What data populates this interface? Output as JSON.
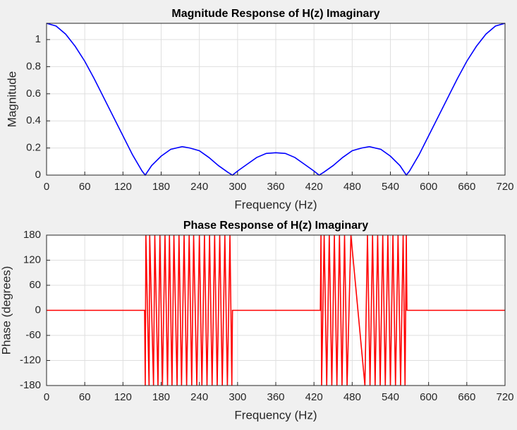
{
  "chart_data": [
    {
      "type": "line",
      "title": "Magnitude Response of H(z) Imaginary",
      "xlabel": "Frequency (Hz)",
      "ylabel": "Magnitude",
      "x": [
        0,
        15,
        30,
        45,
        60,
        75,
        90,
        105,
        120,
        135,
        150,
        155,
        165,
        180,
        195,
        213,
        225,
        240,
        255,
        270,
        285,
        292,
        300,
        315,
        330,
        345,
        360,
        375,
        390,
        405,
        420,
        428,
        435,
        450,
        465,
        480,
        495,
        507,
        525,
        540,
        555,
        565,
        570,
        585,
        600,
        615,
        630,
        645,
        660,
        675,
        690,
        705,
        720
      ],
      "series": [
        {
          "name": "Magnitude",
          "color": "#0000ff",
          "values": [
            1.12,
            1.1,
            1.04,
            0.95,
            0.84,
            0.71,
            0.57,
            0.43,
            0.29,
            0.15,
            0.03,
            0,
            0.07,
            0.14,
            0.19,
            0.21,
            0.2,
            0.18,
            0.13,
            0.07,
            0.02,
            0,
            0.03,
            0.08,
            0.13,
            0.16,
            0.165,
            0.16,
            0.13,
            0.08,
            0.03,
            0,
            0.02,
            0.07,
            0.13,
            0.18,
            0.2,
            0.21,
            0.19,
            0.14,
            0.07,
            0,
            0.03,
            0.15,
            0.29,
            0.43,
            0.57,
            0.71,
            0.84,
            0.95,
            1.04,
            1.1,
            1.12
          ]
        }
      ],
      "xlim": [
        0,
        720
      ],
      "xticks": [
        0,
        60,
        120,
        180,
        240,
        300,
        360,
        420,
        480,
        540,
        600,
        660,
        720
      ],
      "ylim": [
        0,
        1.12
      ],
      "yticks": [
        0,
        0.2,
        0.4,
        0.6,
        0.8,
        1
      ],
      "grid": true
    },
    {
      "type": "line",
      "title": "Phase Response of H(z) Imaginary",
      "xlabel": "Frequency (Hz)",
      "ylabel": "Phase (degrees)",
      "x": [
        0,
        154,
        155,
        156,
        161,
        162,
        168,
        170,
        175,
        178,
        182,
        186,
        190,
        193,
        197,
        200,
        205,
        208,
        212,
        216,
        220,
        224,
        228,
        231,
        236,
        240,
        244,
        248,
        252,
        256,
        260,
        264,
        268,
        272,
        276,
        280,
        284,
        288,
        291,
        292,
        430,
        431,
        432,
        436,
        440,
        444,
        448,
        452,
        456,
        460,
        464,
        468,
        472,
        478,
        500,
        504,
        508,
        512,
        516,
        520,
        524,
        528,
        532,
        536,
        540,
        544,
        548,
        552,
        556,
        560,
        563,
        565,
        566,
        720
      ],
      "series": [
        {
          "name": "Phase",
          "color": "#ff0000",
          "values": [
            0,
            0,
            -180,
            180,
            -180,
            180,
            -180,
            180,
            -180,
            180,
            -180,
            180,
            -180,
            180,
            -180,
            180,
            -180,
            180,
            -180,
            180,
            -180,
            180,
            -180,
            180,
            -180,
            180,
            -180,
            180,
            -180,
            180,
            -180,
            180,
            -180,
            180,
            -180,
            180,
            -180,
            180,
            -180,
            0,
            0,
            180,
            -180,
            180,
            -180,
            180,
            -180,
            180,
            -180,
            180,
            -180,
            180,
            -180,
            180,
            -180,
            180,
            -180,
            180,
            -180,
            180,
            -180,
            180,
            -180,
            180,
            -180,
            180,
            -180,
            180,
            -180,
            180,
            -180,
            180,
            0,
            0
          ]
        }
      ],
      "xlim": [
        0,
        720
      ],
      "xticks": [
        0,
        60,
        120,
        180,
        240,
        300,
        360,
        420,
        480,
        540,
        600,
        660,
        720
      ],
      "ylim": [
        -180,
        180
      ],
      "yticks": [
        -180,
        -120,
        -60,
        0,
        60,
        120,
        180
      ],
      "grid": true
    }
  ]
}
